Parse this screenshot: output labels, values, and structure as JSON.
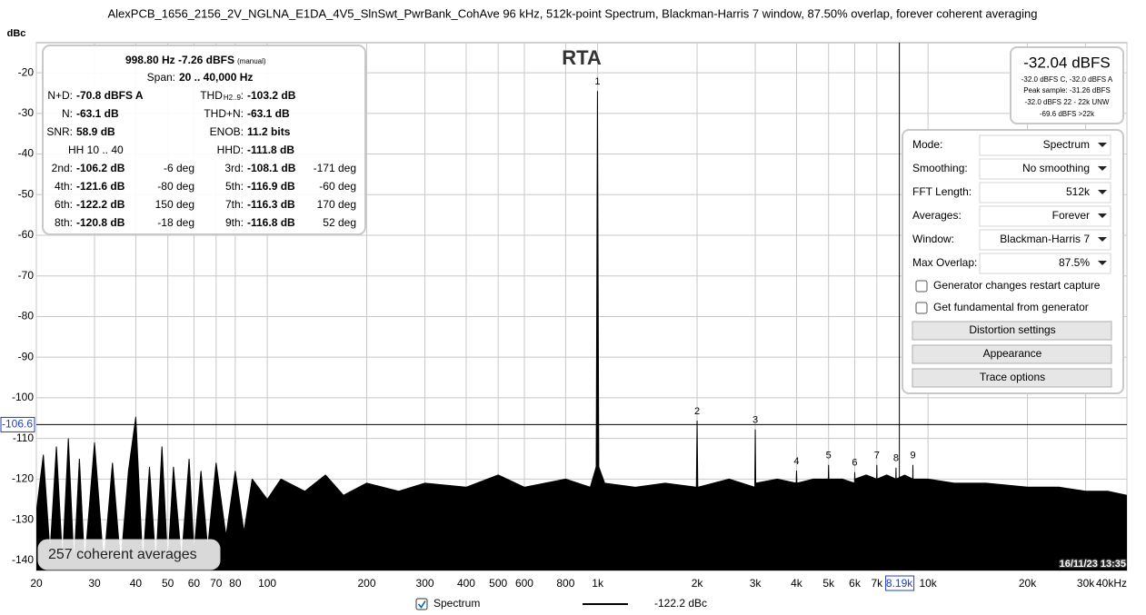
{
  "window_title": "AlexPCB_1656_2156_2V_NGLNA_E1DA_4V5_SlnSwt_PwrBank_CohAve 96 kHz, 512k-point Spectrum, Blackman-Harris 7 window, 87.50% overlap, forever coherent averaging",
  "chart_data": {
    "type": "line",
    "title": "RTA",
    "ylabel": "dBc",
    "xscale": "log",
    "grid": true,
    "x": [
      20,
      21,
      22,
      23,
      24,
      25,
      26,
      27,
      28,
      30,
      32,
      34,
      36,
      38,
      40,
      42,
      44,
      46,
      48,
      50,
      52,
      55,
      58,
      60,
      63,
      66,
      70,
      75,
      80,
      85,
      90,
      100,
      110,
      130,
      150,
      170,
      200,
      250,
      300,
      400,
      500,
      600,
      800,
      950,
      990,
      998.8,
      1008,
      1050,
      1300,
      1600,
      1990,
      2000,
      2010,
      2500,
      2990,
      3000,
      3010,
      3500,
      3990,
      4000,
      4010,
      4500,
      4990,
      5000,
      5010,
      5500,
      5990,
      6000,
      6010,
      6500,
      6990,
      7000,
      7010,
      7500,
      7990,
      8000,
      8010,
      8500,
      8990,
      9000,
      9010,
      10000,
      12000,
      15000,
      20000,
      25000,
      30000,
      35000,
      40000
    ],
    "series": [
      {
        "name": "Spectrum",
        "color": "#000000",
        "values": [
          -128,
          -114,
          -138,
          -112,
          -140,
          -110,
          -141,
          -115,
          -141,
          -111,
          -141,
          -116,
          -141,
          -118,
          -104.7,
          -141,
          -117,
          -141,
          -112,
          -141,
          -117,
          -140,
          -115,
          -138,
          -118,
          -137,
          -116,
          -134,
          -118,
          -133,
          -120,
          -125,
          -120,
          -123,
          -119,
          -124,
          -121,
          -123,
          -121,
          -122,
          -119,
          -122,
          -120,
          -122,
          -117,
          -24.5,
          -117,
          -121,
          -122,
          -121,
          -122,
          -105.6,
          -122,
          -120,
          -122,
          -107.8,
          -121,
          -120,
          -121,
          -117.9,
          -121,
          -120,
          -120,
          -116.5,
          -120,
          -120,
          -121,
          -118.3,
          -120,
          -119,
          -120,
          -116.5,
          -120,
          -119,
          -120,
          -117.2,
          -120,
          -119,
          -120,
          -116.5,
          -120,
          -120,
          -121,
          -121,
          -122,
          -122,
          -123,
          -123,
          -124
        ]
      }
    ],
    "xlim": [
      20,
      40000
    ],
    "ylim": [
      -142.5,
      -12.6
    ],
    "xticks": [
      20,
      30,
      40,
      50,
      60,
      70,
      80,
      100,
      200,
      300,
      400,
      500,
      600,
      800,
      {
        "value": 1000,
        "label": "1k"
      },
      {
        "value": 2000,
        "label": "2k"
      },
      {
        "value": 3000,
        "label": "3k"
      },
      {
        "value": 4000,
        "label": "4k"
      },
      {
        "value": 5000,
        "label": "5k"
      },
      {
        "value": 6000,
        "label": "6k"
      },
      {
        "value": 7000,
        "label": "7k"
      },
      {
        "value": 10000,
        "label": "10k"
      },
      {
        "value": 20000,
        "label": "20k"
      },
      {
        "value": 30000,
        "label": "30k"
      },
      {
        "value": 40000,
        "label": "40kHz"
      }
    ],
    "yticks": [
      -20,
      -30,
      -40,
      -50,
      -60,
      -70,
      -80,
      -90,
      -100,
      -110,
      -120,
      -130,
      -140
    ],
    "markers": {
      "labels": [
        "1",
        "2",
        "3",
        "4",
        "5",
        "6",
        "7",
        "8",
        "9"
      ],
      "x": [
        998.8,
        2000,
        3000,
        4000,
        5000,
        6000,
        7000,
        8000,
        9000
      ],
      "values": [
        -24.5,
        -105.6,
        -107.8,
        -117.9,
        -116.5,
        -118.3,
        -116.5,
        -117.2,
        -116.5
      ]
    },
    "cursor": {
      "x": 8190,
      "x_label": "8.19k",
      "y": -106.6
    },
    "legend_value": "-122.2 dBc",
    "averages_note": "257 coherent averages",
    "timestamp": "16/11/23 13:35"
  },
  "info_panel": {
    "frequency": "998.80 Hz  -7.26 dBFS",
    "frequency_note": "(manual)",
    "span_label": "Span:",
    "span": "20 .. 40,000 Hz",
    "rows": [
      {
        "left_label": "N+D:",
        "left_value": "-70.8 dBFS A",
        "right_label": "THD",
        "right_label_sub": "H2..9",
        "right_colon": ":",
        "right_value": "-103.2 dB"
      },
      {
        "left_label": "N:",
        "left_value": "-63.1 dB",
        "right_label": "THD+N:",
        "right_value": "-63.1 dB"
      },
      {
        "left_label": "SNR:",
        "left_value": "58.9 dB",
        "right_label": "ENOB:",
        "right_value": "11.2 bits"
      },
      {
        "left_label": "HH 10 .. 40",
        "right_label": "HHD:",
        "right_value": "-111.8 dB"
      },
      {
        "left_label": "2nd:",
        "left_value": "-106.2 dB",
        "left_phase": "-6 deg",
        "right_label": "3rd:",
        "right_value": "-108.1 dB",
        "right_phase": "-171 deg"
      },
      {
        "left_label": "4th:",
        "left_value": "-121.6 dB",
        "left_phase": "-80 deg",
        "right_label": "5th:",
        "right_value": "-116.9 dB",
        "right_phase": "-60 deg"
      },
      {
        "left_label": "6th:",
        "left_value": "-122.2 dB",
        "left_phase": "150 deg",
        "right_label": "7th:",
        "right_value": "-116.3 dB",
        "right_phase": "170 deg"
      },
      {
        "left_label": "8th:",
        "left_value": "-120.8 dB",
        "left_phase": "-18 deg",
        "right_label": "9th:",
        "right_value": "-116.8 dB",
        "right_phase": "52 deg"
      }
    ]
  },
  "level_panel": {
    "level": "-32.04 dBFS",
    "lines": [
      "-32.0 dBFS C, -32.0 dBFS A",
      "Peak sample: -31.26 dBFS",
      "-32.0 dBFS 22 - 22k UNW",
      "-69.6 dBFS >22k"
    ]
  },
  "controls": {
    "dropdowns": [
      {
        "label": "Mode:",
        "value": "Spectrum"
      },
      {
        "label": "Smoothing:",
        "value": "No smoothing"
      },
      {
        "label": "FFT Length:",
        "value": "512k"
      },
      {
        "label": "Averages:",
        "value": "Forever"
      },
      {
        "label": "Window:",
        "value": "Blackman-Harris 7"
      },
      {
        "label": "Max Overlap:",
        "value": "87.5%"
      }
    ],
    "checkboxes": [
      "Generator changes restart capture",
      "Get fundamental from generator"
    ],
    "buttons": [
      "Distortion settings",
      "Appearance",
      "Trace options"
    ]
  }
}
